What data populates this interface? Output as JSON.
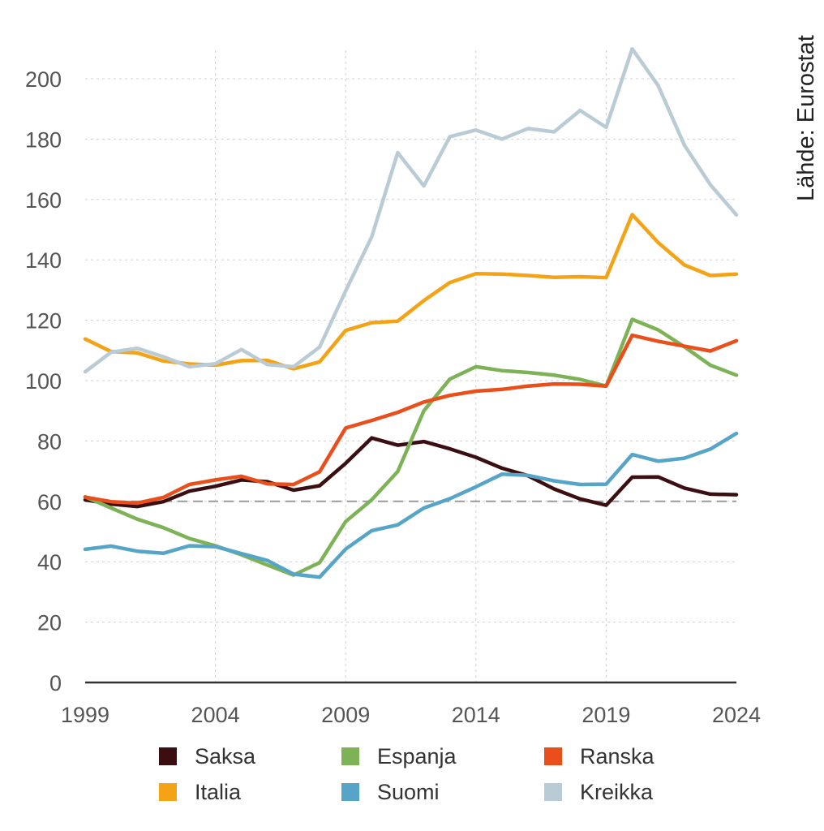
{
  "source": "Lähde: Eurostat",
  "chart_data": {
    "type": "line",
    "x": [
      1999,
      2000,
      2001,
      2002,
      2003,
      2004,
      2005,
      2006,
      2007,
      2008,
      2009,
      2010,
      2011,
      2012,
      2013,
      2014,
      2015,
      2016,
      2017,
      2018,
      2019,
      2020,
      2021,
      2022,
      2023,
      2024
    ],
    "xticks": [
      1999,
      2004,
      2009,
      2014,
      2019,
      2024
    ],
    "xlim": [
      1999,
      2024
    ],
    "ylim": [
      0,
      210
    ],
    "yticks": [
      0,
      20,
      40,
      60,
      80,
      100,
      120,
      140,
      160,
      180,
      200
    ],
    "grid": true,
    "reference_line": 60,
    "legend_position": "bottom",
    "series": [
      {
        "name": "Saksa",
        "color": "#3b0f12",
        "values": [
          60.5,
          59.1,
          58.3,
          59.9,
          63.4,
          65.0,
          67.1,
          66.5,
          63.7,
          65.2,
          72.6,
          81.0,
          78.6,
          79.8,
          77.4,
          74.6,
          71.0,
          68.5,
          64.1,
          60.8,
          58.7,
          68.0,
          68.1,
          64.4,
          62.4,
          62.2
        ]
      },
      {
        "name": "Espanja",
        "color": "#7db356",
        "values": [
          61.5,
          57.8,
          54.1,
          51.3,
          47.7,
          45.3,
          42.3,
          38.9,
          35.6,
          39.7,
          53.3,
          60.5,
          69.9,
          90.0,
          100.5,
          104.6,
          103.3,
          102.7,
          101.8,
          100.4,
          98.2,
          120.3,
          116.8,
          111.2,
          105.1,
          101.8
        ]
      },
      {
        "name": "Ranska",
        "color": "#e94e1b",
        "values": [
          61.4,
          59.9,
          59.4,
          61.3,
          65.6,
          67.1,
          68.3,
          65.8,
          65.6,
          69.8,
          84.3,
          86.8,
          89.5,
          92.9,
          95.1,
          96.5,
          97.1,
          98.2,
          98.9,
          98.8,
          98.2,
          115.0,
          113.0,
          111.4,
          109.8,
          113.2
        ]
      },
      {
        "name": "Italia",
        "color": "#f5a316",
        "values": [
          113.8,
          109.6,
          109.2,
          106.5,
          105.5,
          105.1,
          106.6,
          106.7,
          103.9,
          106.2,
          116.6,
          119.2,
          119.7,
          126.5,
          132.5,
          135.4,
          135.3,
          134.8,
          134.2,
          134.4,
          134.1,
          155.0,
          145.7,
          138.3,
          134.8,
          135.3
        ]
      },
      {
        "name": "Suomi",
        "color": "#56a5c8",
        "values": [
          44.1,
          45.2,
          43.5,
          42.8,
          45.3,
          45.0,
          42.7,
          40.4,
          35.9,
          34.9,
          44.2,
          50.3,
          52.2,
          57.8,
          60.9,
          64.8,
          69.0,
          68.6,
          66.8,
          65.6,
          65.7,
          75.5,
          73.3,
          74.3,
          77.3,
          82.5
        ]
      },
      {
        "name": "Kreikka",
        "color": "#b9cbd5",
        "values": [
          102.9,
          109.4,
          110.7,
          107.9,
          104.6,
          105.6,
          110.3,
          105.3,
          104.6,
          111.1,
          129.7,
          147.6,
          175.5,
          164.5,
          180.8,
          183.0,
          180.0,
          183.5,
          182.4,
          189.5,
          183.9,
          209.9,
          197.7,
          178.0,
          164.9,
          154.9
        ]
      }
    ]
  }
}
